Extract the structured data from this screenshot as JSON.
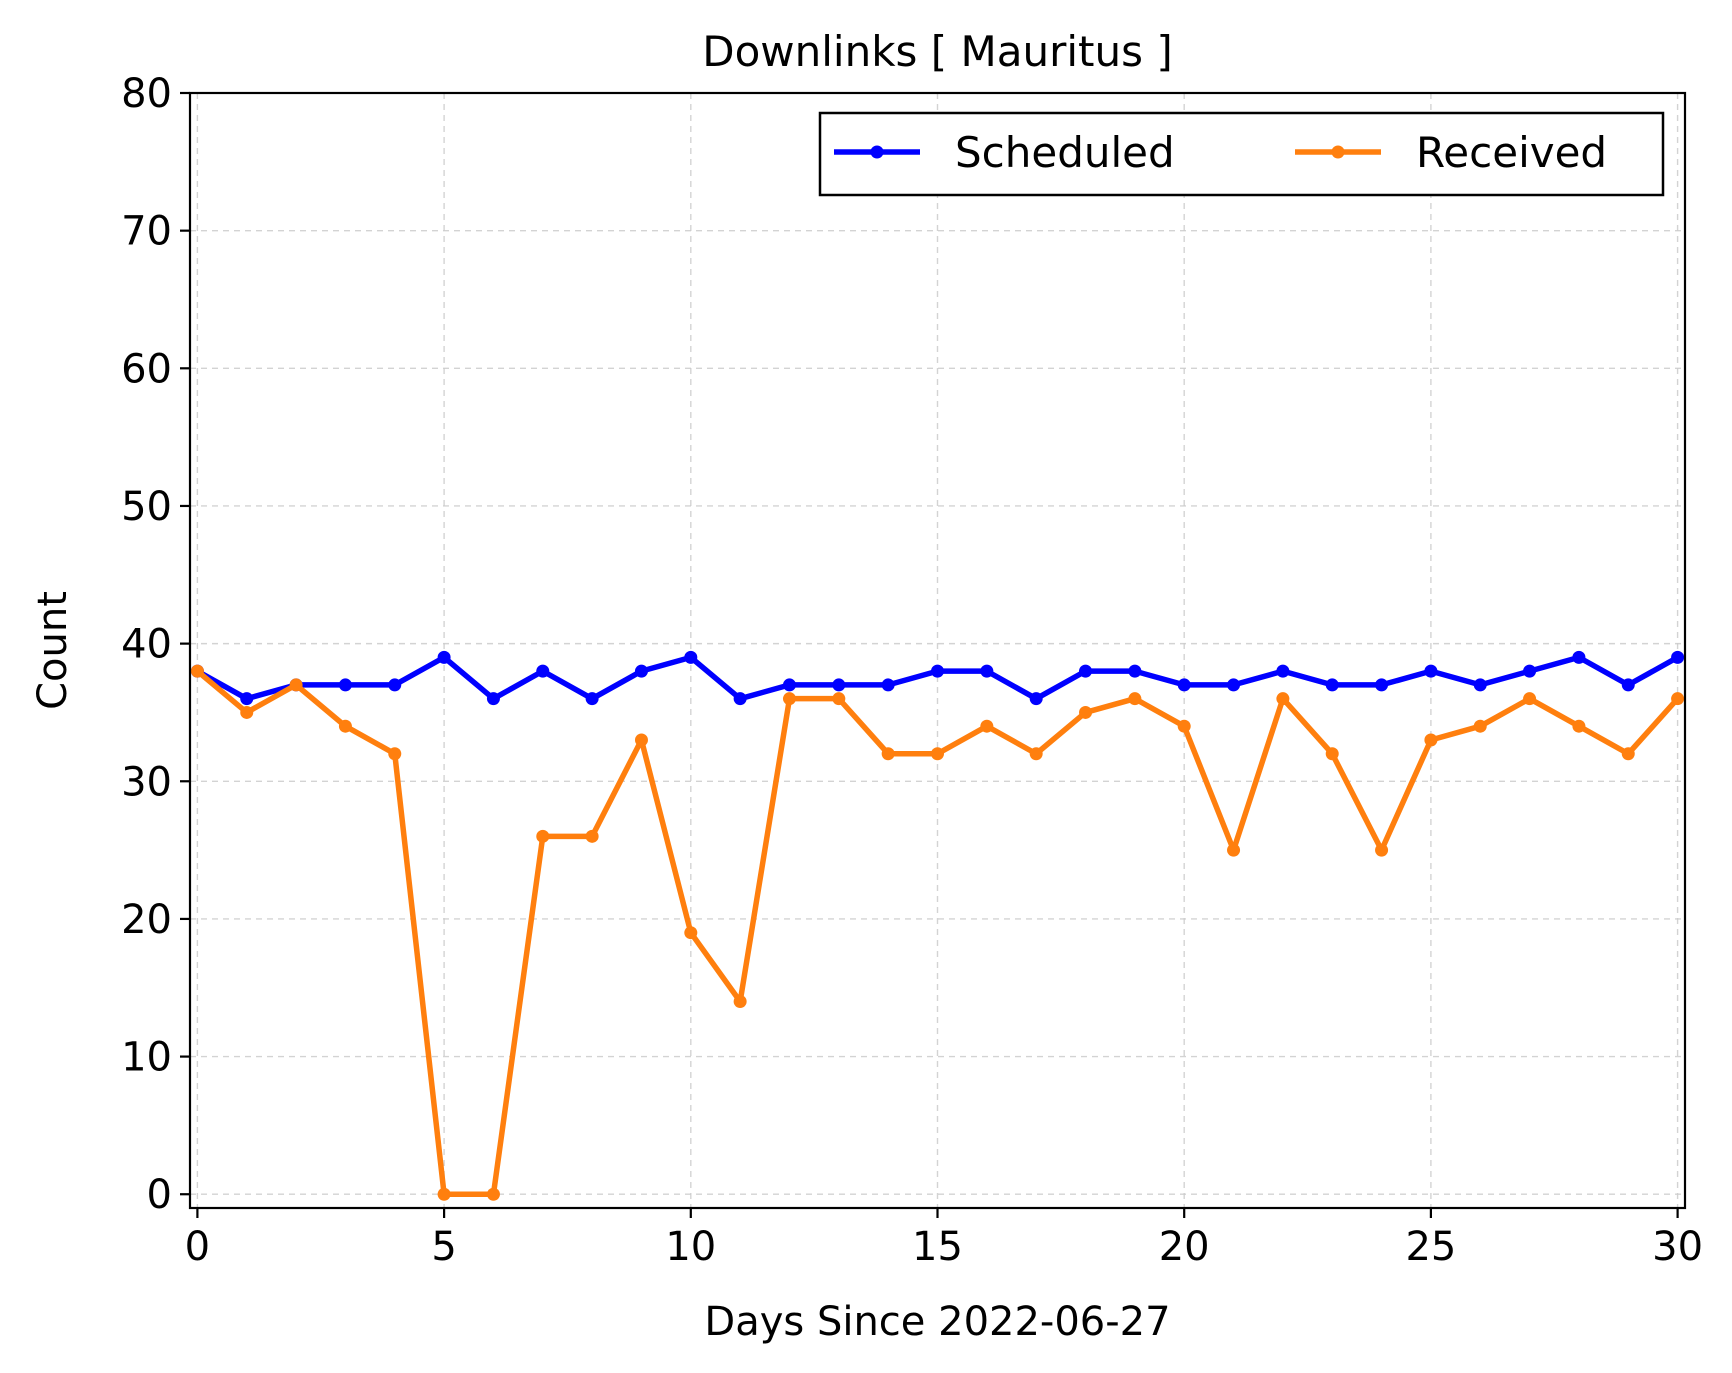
{
  "chart_data": {
    "type": "line",
    "title": "Downlinks [ Mauritus ]",
    "xlabel": "Days Since 2022-06-27",
    "ylabel": "Count",
    "xlim": [
      -0.15,
      30.15
    ],
    "ylim": [
      -1,
      80
    ],
    "xticks": [
      0,
      5,
      10,
      15,
      20,
      25,
      30
    ],
    "yticks": [
      0,
      10,
      20,
      30,
      40,
      50,
      60,
      70,
      80
    ],
    "grid": true,
    "legend_position": "upper-right",
    "x": [
      0,
      1,
      2,
      3,
      4,
      5,
      6,
      7,
      8,
      9,
      10,
      11,
      12,
      13,
      14,
      15,
      16,
      17,
      18,
      19,
      20,
      21,
      22,
      23,
      24,
      25,
      26,
      27,
      28,
      29,
      30
    ],
    "series": [
      {
        "name": "Scheduled",
        "color": "#0000ff",
        "values": [
          38,
          36,
          37,
          37,
          37,
          39,
          36,
          38,
          36,
          38,
          39,
          36,
          37,
          37,
          37,
          38,
          38,
          36,
          38,
          38,
          37,
          37,
          38,
          37,
          37,
          38,
          37,
          38,
          39,
          37,
          39
        ]
      },
      {
        "name": "Received",
        "color": "#ff7f0e",
        "values": [
          38,
          35,
          37,
          34,
          32,
          0,
          0,
          26,
          26,
          33,
          19,
          14,
          36,
          36,
          32,
          32,
          34,
          32,
          35,
          36,
          34,
          25,
          36,
          32,
          25,
          33,
          34,
          36,
          34,
          32,
          36
        ]
      }
    ]
  }
}
